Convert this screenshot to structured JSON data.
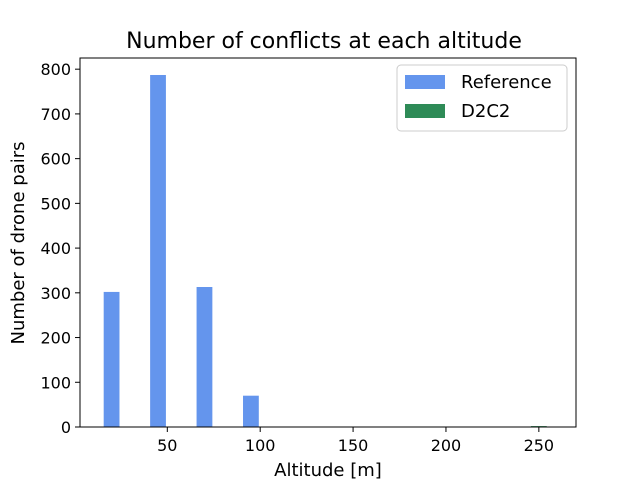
{
  "chart_data": {
    "type": "bar",
    "title": "Number of conflicts at each altitude",
    "xlabel": "Altitude [m]",
    "ylabel": "Number of drone pairs",
    "xlim": [
      3,
      270
    ],
    "ylim": [
      0,
      825
    ],
    "xticks": [
      50,
      100,
      150,
      200,
      250
    ],
    "yticks": [
      0,
      100,
      200,
      300,
      400,
      500,
      600,
      700,
      800
    ],
    "bar_width": 8.5,
    "grid": false,
    "legend_position": "upper right",
    "series": [
      {
        "name": "Reference",
        "color": "#6495ED",
        "x": [
          20,
          45,
          70,
          95,
          250
        ],
        "values": [
          302,
          787,
          313,
          70,
          0
        ]
      },
      {
        "name": "D2C2",
        "color": "#2E8B57",
        "x": [
          20,
          45,
          70,
          95,
          250
        ],
        "values": [
          0,
          0,
          0,
          0,
          2
        ]
      }
    ]
  }
}
